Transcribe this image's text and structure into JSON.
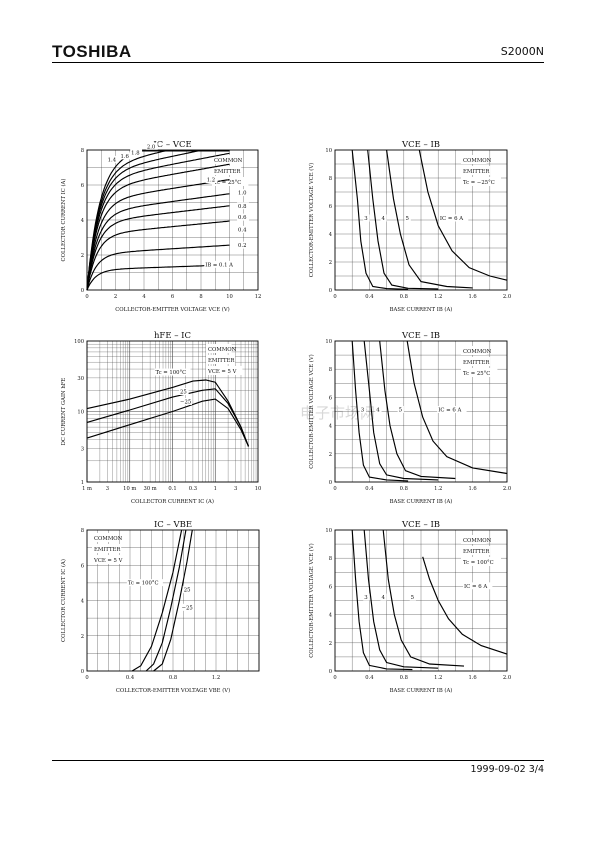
{
  "header": {
    "brand": "TOSHIBA",
    "part_number": "S2000N"
  },
  "footer": {
    "date": "1999-09-02",
    "page": "3/4",
    "text": "1999-09-02   3/4"
  },
  "watermark": "电子市场网",
  "chart_data": [
    {
      "id": "ic-vce",
      "type": "line",
      "title": "IC – VCE",
      "xlabel": "COLLECTOR-EMITTER VOLTAGE  VCE  (V)",
      "ylabel": "COLLECTOR CURRENT  IC  (A)",
      "x_ticks": [
        "0",
        "2",
        "4",
        "6",
        "8",
        "10",
        "12"
      ],
      "y_ticks": [
        "0",
        "2",
        "4",
        "6",
        "8"
      ],
      "xlim": [
        0,
        12
      ],
      "ylim": [
        0,
        8
      ],
      "legend": [
        "COMMON",
        "EMITTER",
        "Tc = 25°C"
      ],
      "curve_labels": [
        "1.4",
        "1.6",
        "1.8",
        "2.0",
        "1.2",
        "1.0",
        "0.8",
        "0.6",
        "0.4",
        "0.2",
        "IB = 0.1 A"
      ],
      "series": [
        {
          "name": "0.1",
          "sat": 1.15
        },
        {
          "name": "0.2",
          "sat": 2.05
        },
        {
          "name": "0.4",
          "sat": 3.15
        },
        {
          "name": "0.6",
          "sat": 3.85
        },
        {
          "name": "0.8",
          "sat": 4.4
        },
        {
          "name": "1.0",
          "sat": 5.05
        },
        {
          "name": "1.2",
          "sat": 5.75
        },
        {
          "name": "1.4",
          "sat": 6.25
        },
        {
          "name": "1.6",
          "sat": 6.65
        },
        {
          "name": "1.8",
          "sat": 7.0
        },
        {
          "name": "2.0",
          "sat": 7.4
        }
      ]
    },
    {
      "id": "vce-ib-m25",
      "type": "line",
      "title": "VCE – IB",
      "xlabel": "BASE CURRENT  IB  (A)",
      "ylabel": "COLLECTOR-EMITTER VOLTAGE  VCE  (V)",
      "x_ticks": [
        "0",
        "0.4",
        "0.8",
        "1.2",
        "1.6",
        "2.0"
      ],
      "y_ticks": [
        "0",
        "2",
        "4",
        "6",
        "8",
        "10"
      ],
      "xlim": [
        0,
        2
      ],
      "ylim": [
        0,
        10
      ],
      "legend": [
        "COMMON",
        "EMITTER",
        "Tc = −25°C"
      ],
      "curve_labels": [
        "3",
        "4",
        "5",
        "IC = 6 A"
      ],
      "series": [
        {
          "name": "3",
          "points": [
            [
              0.2,
              10
            ],
            [
              0.26,
              6.5
            ],
            [
              0.3,
              3.5
            ],
            [
              0.36,
              1.2
            ],
            [
              0.44,
              0.25
            ],
            [
              0.6,
              0.1
            ],
            [
              0.85,
              0.05
            ]
          ]
        },
        {
          "name": "4",
          "points": [
            [
              0.38,
              10
            ],
            [
              0.44,
              6.5
            ],
            [
              0.5,
              3.5
            ],
            [
              0.57,
              1.2
            ],
            [
              0.66,
              0.35
            ],
            [
              0.85,
              0.12
            ],
            [
              1.2,
              0.08
            ]
          ]
        },
        {
          "name": "5",
          "points": [
            [
              0.6,
              10
            ],
            [
              0.68,
              6.5
            ],
            [
              0.76,
              4
            ],
            [
              0.86,
              1.8
            ],
            [
              1.0,
              0.6
            ],
            [
              1.3,
              0.25
            ],
            [
              1.6,
              0.15
            ]
          ]
        },
        {
          "name": "IC = 6 A",
          "points": [
            [
              0.98,
              10
            ],
            [
              1.08,
              7
            ],
            [
              1.2,
              4.6
            ],
            [
              1.36,
              2.8
            ],
            [
              1.56,
              1.6
            ],
            [
              1.8,
              1.0
            ],
            [
              2.0,
              0.7
            ]
          ]
        }
      ]
    },
    {
      "id": "hfe-ic",
      "type": "line",
      "title": "hFE – IC",
      "xlabel": "COLLECTOR CURRENT  IC  (A)",
      "ylabel": "DC CURRENT GAIN  hFE",
      "x_scale": "log",
      "y_scale": "log",
      "x_ticks": [
        "1 m",
        "3",
        "10 m",
        "30 m",
        "0.1",
        "0.3",
        "1",
        "3",
        "10"
      ],
      "y_ticks": [
        "1",
        "3",
        "10",
        "30",
        "100"
      ],
      "xlim": [
        0.001,
        10
      ],
      "ylim": [
        1,
        100
      ],
      "legend": [
        "COMMON",
        "EMITTER",
        "VCE = 5 V"
      ],
      "curve_labels": [
        "Tc = 100°C",
        "25",
        "−25"
      ],
      "series": [
        {
          "name": "Tc = 100°C",
          "points": [
            [
              0.001,
              11
            ],
            [
              0.01,
              15
            ],
            [
              0.1,
              22
            ],
            [
              0.3,
              27
            ],
            [
              0.6,
              28
            ],
            [
              1,
              26
            ],
            [
              2,
              14
            ],
            [
              4,
              6
            ],
            [
              6,
              3.2
            ]
          ]
        },
        {
          "name": "25",
          "points": [
            [
              0.001,
              7
            ],
            [
              0.01,
              10.5
            ],
            [
              0.1,
              16
            ],
            [
              0.5,
              20
            ],
            [
              1,
              21
            ],
            [
              2,
              13
            ],
            [
              4,
              6
            ],
            [
              6,
              3.2
            ]
          ]
        },
        {
          "name": "−25",
          "points": [
            [
              0.001,
              4.2
            ],
            [
              0.01,
              6.5
            ],
            [
              0.1,
              10
            ],
            [
              0.5,
              14
            ],
            [
              1,
              15
            ],
            [
              2,
              11
            ],
            [
              4,
              5.5
            ],
            [
              6,
              3.2
            ]
          ]
        }
      ]
    },
    {
      "id": "vce-ib-25",
      "type": "line",
      "title": "VCE – IB",
      "xlabel": "BASE CURRENT  IB  (A)",
      "ylabel": "COLLECTOR-EMITTER VOLTAGE  VCE  (V)",
      "x_ticks": [
        "0",
        "0.4",
        "0.8",
        "1.2",
        "1.6",
        "2.0"
      ],
      "y_ticks": [
        "0",
        "2",
        "4",
        "6",
        "8",
        "10"
      ],
      "xlim": [
        0,
        2
      ],
      "ylim": [
        0,
        10
      ],
      "legend": [
        "COMMON",
        "EMITTER",
        "Tc = 25°C"
      ],
      "curve_labels": [
        "3",
        "4",
        "5",
        "IC = 6 A"
      ],
      "series": [
        {
          "name": "3",
          "points": [
            [
              0.2,
              10
            ],
            [
              0.24,
              6.5
            ],
            [
              0.28,
              3.5
            ],
            [
              0.33,
              1.2
            ],
            [
              0.4,
              0.35
            ],
            [
              0.6,
              0.15
            ],
            [
              0.85,
              0.08
            ]
          ]
        },
        {
          "name": "4",
          "points": [
            [
              0.34,
              10
            ],
            [
              0.4,
              6.5
            ],
            [
              0.45,
              3.5
            ],
            [
              0.52,
              1.3
            ],
            [
              0.6,
              0.5
            ],
            [
              0.8,
              0.25
            ],
            [
              1.2,
              0.15
            ]
          ]
        },
        {
          "name": "5",
          "points": [
            [
              0.52,
              10
            ],
            [
              0.58,
              6.5
            ],
            [
              0.64,
              4
            ],
            [
              0.72,
              2
            ],
            [
              0.82,
              0.8
            ],
            [
              1.0,
              0.4
            ],
            [
              1.4,
              0.25
            ]
          ]
        },
        {
          "name": "IC = 6 A",
          "points": [
            [
              0.84,
              10
            ],
            [
              0.92,
              7
            ],
            [
              1.02,
              4.6
            ],
            [
              1.14,
              2.9
            ],
            [
              1.3,
              1.8
            ],
            [
              1.6,
              1.0
            ],
            [
              2.0,
              0.6
            ]
          ]
        }
      ]
    },
    {
      "id": "ic-vbe",
      "type": "line",
      "title": "IC – VBE",
      "xlabel": "COLLECTOR-EMITTER VOLTAGE  VBE  (V)",
      "ylabel": "COLLECTOR CURRENT  IC  (A)",
      "x_ticks": [
        "0",
        "0.4",
        "0.8",
        "1.2"
      ],
      "y_ticks": [
        "0",
        "2",
        "4",
        "6",
        "8"
      ],
      "xlim": [
        0,
        1.6
      ],
      "ylim": [
        0,
        8
      ],
      "legend": [
        "COMMON",
        "EMITTER",
        "VCE = 5 V"
      ],
      "curve_labels": [
        "Tc = 100°C",
        "25",
        "−25"
      ],
      "series": [
        {
          "name": "Tc = 100°C",
          "points": [
            [
              0.42,
              0
            ],
            [
              0.5,
              0.3
            ],
            [
              0.6,
              1.4
            ],
            [
              0.7,
              3.3
            ],
            [
              0.8,
              5.6
            ],
            [
              0.88,
              8
            ]
          ]
        },
        {
          "name": "25",
          "points": [
            [
              0.55,
              0
            ],
            [
              0.62,
              0.4
            ],
            [
              0.7,
              1.6
            ],
            [
              0.78,
              3.6
            ],
            [
              0.86,
              5.9
            ],
            [
              0.92,
              8
            ]
          ]
        },
        {
          "name": "−25",
          "points": [
            [
              0.62,
              0
            ],
            [
              0.7,
              0.4
            ],
            [
              0.78,
              1.8
            ],
            [
              0.86,
              4
            ],
            [
              0.93,
              6.2
            ],
            [
              0.98,
              8
            ]
          ]
        }
      ]
    },
    {
      "id": "vce-ib-100",
      "type": "line",
      "title": "VCE – IB",
      "xlabel": "BASE CURRENT  IB  (A)",
      "ylabel": "COLLECTOR-EMITTER VOLTAGE  VCE  (V)",
      "x_ticks": [
        "0",
        "0.4",
        "0.8",
        "1.2",
        "1.6",
        "2.0"
      ],
      "y_ticks": [
        "0",
        "2",
        "4",
        "6",
        "8",
        "10"
      ],
      "xlim": [
        0,
        2
      ],
      "ylim": [
        0,
        10
      ],
      "legend": [
        "COMMON",
        "EMITTER",
        "Tc = 100°C"
      ],
      "curve_labels": [
        "3",
        "4",
        "5",
        "IC = 6 A"
      ],
      "series": [
        {
          "name": "3",
          "points": [
            [
              0.2,
              10
            ],
            [
              0.24,
              6.5
            ],
            [
              0.28,
              3.5
            ],
            [
              0.33,
              1.3
            ],
            [
              0.4,
              0.4
            ],
            [
              0.6,
              0.15
            ],
            [
              0.9,
              0.1
            ]
          ]
        },
        {
          "name": "4",
          "points": [
            [
              0.34,
              10
            ],
            [
              0.39,
              6.5
            ],
            [
              0.45,
              3.5
            ],
            [
              0.52,
              1.5
            ],
            [
              0.6,
              0.6
            ],
            [
              0.8,
              0.3
            ],
            [
              1.2,
              0.2
            ]
          ]
        },
        {
          "name": "5",
          "points": [
            [
              0.56,
              10
            ],
            [
              0.62,
              6.5
            ],
            [
              0.69,
              4
            ],
            [
              0.77,
              2.2
            ],
            [
              0.88,
              1
            ],
            [
              1.1,
              0.5
            ],
            [
              1.5,
              0.35
            ]
          ]
        },
        {
          "name": "IC = 6 A",
          "points": [
            [
              1.02,
              8.1
            ],
            [
              1.1,
              6.5
            ],
            [
              1.2,
              5
            ],
            [
              1.32,
              3.7
            ],
            [
              1.48,
              2.6
            ],
            [
              1.7,
              1.8
            ],
            [
              2.0,
              1.2
            ]
          ]
        }
      ]
    }
  ]
}
